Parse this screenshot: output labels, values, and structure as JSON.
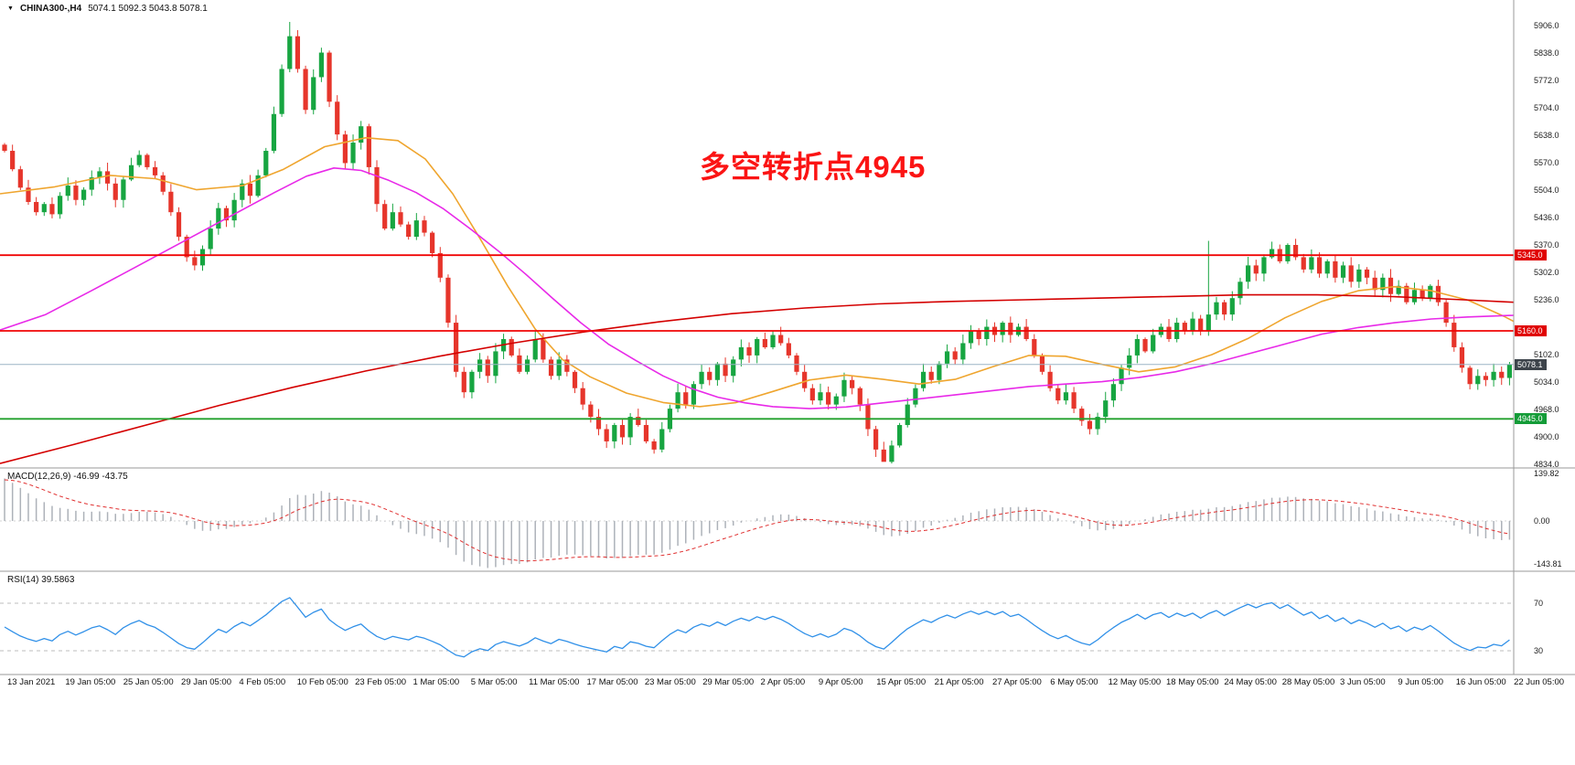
{
  "header": {
    "marker": "▼",
    "symbol": "CHINA300-,H4",
    "ohlc": "5074.1 5092.3 5043.8 5078.1"
  },
  "annotation": {
    "text": "多空转折点4945",
    "color": "#fb1414"
  },
  "panels": {
    "macd": {
      "label": "MACD(12,26,9) -46.99 -43.75",
      "axis": [
        "139.82",
        "0.00",
        "-143.81"
      ]
    },
    "rsi": {
      "label": "RSI(14) 39.5863",
      "axis": [
        "70",
        "30"
      ]
    }
  },
  "price_axis": {
    "labels": [
      "5906.0",
      "5838.0",
      "5772.0",
      "5704.0",
      "5638.0",
      "5570.0",
      "5504.0",
      "5436.0",
      "5370.0",
      "5302.0",
      "5236.0",
      "5102.0",
      "5034.0",
      "4968.0",
      "4900.0",
      "4834.0"
    ]
  },
  "markers": [
    {
      "text": "5345.0",
      "price": 5345.0,
      "bg": "#e00000"
    },
    {
      "text": "5160.0",
      "price": 5160.0,
      "bg": "#e00000"
    },
    {
      "text": "5078.1",
      "price": 5078.1,
      "bg": "#3d444b"
    },
    {
      "text": "4945.0",
      "price": 4945.0,
      "bg": "#149c38"
    }
  ],
  "date_axis": [
    "13 Jan 2021",
    "19 Jan 05:00",
    "25 Jan 05:00",
    "29 Jan 05:00",
    "4 Feb 05:00",
    "10 Feb 05:00",
    "23 Feb 05:00",
    "1 Mar 05:00",
    "5 Mar 05:00",
    "11 Mar 05:00",
    "17 Mar 05:00",
    "23 Mar 05:00",
    "29 Mar 05:00",
    "2 Apr 05:00",
    "9 Apr 05:00",
    "15 Apr 05:00",
    "21 Apr 05:00",
    "27 Apr 05:00",
    "6 May 05:00",
    "12 May 05:00",
    "18 May 05:00",
    "24 May 05:00",
    "28 May 05:00",
    "3 Jun 05:00",
    "9 Jun 05:00",
    "16 Jun 05:00",
    "22 Jun 05:00"
  ],
  "colors": {
    "up": "#17a541",
    "down": "#e6352b",
    "macd_hist": "#adb2b9",
    "macd_signal": "#e03030",
    "rsi_line": "#3090e8",
    "separator": "#9a9a9a",
    "level_red": "#f00505",
    "level_green": "#22a02c",
    "bid_line": "#9cb3c6"
  },
  "chart_data": {
    "type": "candlestick",
    "symbol": "CHINA300-",
    "timeframe": "H4",
    "title": "CHINA300-,H4 5074.1 5092.3 5043.8 5078.1",
    "ohlc_display": {
      "open": 5074.1,
      "high": 5092.3,
      "low": 5043.8,
      "close": 5078.1
    },
    "price_axis_range": [
      4834,
      5906
    ],
    "x_range": [
      "13 Jan 2021",
      "22 Jun 05:00"
    ],
    "closes": [
      5600,
      5555,
      5510,
      5475,
      5450,
      5470,
      5445,
      5490,
      5515,
      5480,
      5505,
      5535,
      5550,
      5520,
      5480,
      5530,
      5565,
      5590,
      5560,
      5540,
      5500,
      5450,
      5390,
      5340,
      5320,
      5360,
      5410,
      5460,
      5430,
      5480,
      5520,
      5490,
      5540,
      5600,
      5690,
      5800,
      5880,
      5800,
      5700,
      5780,
      5840,
      5720,
      5640,
      5570,
      5620,
      5660,
      5560,
      5470,
      5410,
      5450,
      5420,
      5390,
      5430,
      5400,
      5350,
      5290,
      5180,
      5060,
      5010,
      5060,
      5090,
      5050,
      5110,
      5140,
      5100,
      5060,
      5090,
      5140,
      5090,
      5050,
      5090,
      5060,
      5020,
      4980,
      4950,
      4920,
      4890,
      4930,
      4900,
      4950,
      4930,
      4890,
      4870,
      4920,
      4970,
      5010,
      4980,
      5030,
      5060,
      5040,
      5080,
      5050,
      5090,
      5120,
      5100,
      5140,
      5120,
      5150,
      5130,
      5100,
      5060,
      5020,
      4990,
      5010,
      4980,
      5000,
      5040,
      5020,
      4980,
      4920,
      4870,
      4840,
      4880,
      4930,
      4980,
      5020,
      5060,
      5040,
      5080,
      5110,
      5090,
      5130,
      5160,
      5140,
      5170,
      5150,
      5180,
      5150,
      5170,
      5140,
      5100,
      5060,
      5020,
      4990,
      5010,
      4970,
      4940,
      4920,
      4950,
      4990,
      5030,
      5070,
      5100,
      5140,
      5110,
      5150,
      5170,
      5140,
      5180,
      5160,
      5190,
      5160,
      5200,
      5230,
      5200,
      5240,
      5280,
      5320,
      5300,
      5340,
      5360,
      5330,
      5370,
      5340,
      5310,
      5340,
      5300,
      5330,
      5290,
      5320,
      5280,
      5310,
      5290,
      5260,
      5290,
      5250,
      5270,
      5230,
      5260,
      5240,
      5270,
      5230,
      5180,
      5120,
      5070,
      5030,
      5050,
      5040,
      5060,
      5045,
      5078.1
    ],
    "wick_overrides": [
      {
        "i": 36,
        "high": 5915
      },
      {
        "i": 82,
        "low": 4860
      },
      {
        "i": 111,
        "low": 4848
      },
      {
        "i": 152,
        "high": 5380
      }
    ],
    "levels": [
      {
        "price": 5345,
        "color": "#f00505",
        "width": 1.8
      },
      {
        "price": 5160,
        "color": "#f00505",
        "width": 1.8
      },
      {
        "price": 4945,
        "color": "#22a02c",
        "width": 1.8
      }
    ],
    "bid_line": {
      "price": 5078.1
    },
    "moving_averages": [
      {
        "name": "ma-fast-orange",
        "color": "#efa52e",
        "width": 1.6,
        "points": [
          [
            0,
            5495
          ],
          [
            60,
            5512
          ],
          [
            120,
            5540
          ],
          [
            170,
            5532
          ],
          [
            215,
            5505
          ],
          [
            265,
            5515
          ],
          [
            310,
            5555
          ],
          [
            355,
            5610
          ],
          [
            400,
            5632
          ],
          [
            435,
            5625
          ],
          [
            465,
            5580
          ],
          [
            495,
            5495
          ],
          [
            525,
            5385
          ],
          [
            555,
            5270
          ],
          [
            585,
            5165
          ],
          [
            615,
            5090
          ],
          [
            645,
            5048
          ],
          [
            685,
            5008
          ],
          [
            725,
            4985
          ],
          [
            765,
            4975
          ],
          [
            805,
            4985
          ],
          [
            845,
            5012
          ],
          [
            885,
            5040
          ],
          [
            925,
            5052
          ],
          [
            965,
            5042
          ],
          [
            1005,
            5030
          ],
          [
            1045,
            5042
          ],
          [
            1085,
            5072
          ],
          [
            1125,
            5100
          ],
          [
            1165,
            5098
          ],
          [
            1205,
            5078
          ],
          [
            1245,
            5060
          ],
          [
            1285,
            5072
          ],
          [
            1325,
            5102
          ],
          [
            1365,
            5142
          ],
          [
            1405,
            5192
          ],
          [
            1445,
            5232
          ],
          [
            1485,
            5258
          ],
          [
            1525,
            5268
          ],
          [
            1565,
            5258
          ],
          [
            1605,
            5235
          ],
          [
            1645,
            5195
          ],
          [
            1655,
            5183
          ]
        ]
      },
      {
        "name": "ma-mid-magenta",
        "color": "#e829e8",
        "width": 1.6,
        "points": [
          [
            0,
            5162
          ],
          [
            50,
            5200
          ],
          [
            100,
            5258
          ],
          [
            150,
            5318
          ],
          [
            200,
            5378
          ],
          [
            250,
            5438
          ],
          [
            300,
            5498
          ],
          [
            335,
            5538
          ],
          [
            365,
            5558
          ],
          [
            395,
            5552
          ],
          [
            425,
            5528
          ],
          [
            455,
            5498
          ],
          [
            485,
            5458
          ],
          [
            515,
            5408
          ],
          [
            545,
            5355
          ],
          [
            575,
            5298
          ],
          [
            605,
            5238
          ],
          [
            635,
            5180
          ],
          [
            665,
            5128
          ],
          [
            695,
            5088
          ],
          [
            725,
            5050
          ],
          [
            755,
            5020
          ],
          [
            785,
            4998
          ],
          [
            815,
            4984
          ],
          [
            845,
            4975
          ],
          [
            885,
            4970
          ],
          [
            925,
            4974
          ],
          [
            965,
            4984
          ],
          [
            1005,
            4994
          ],
          [
            1045,
            5004
          ],
          [
            1085,
            5014
          ],
          [
            1125,
            5024
          ],
          [
            1165,
            5030
          ],
          [
            1205,
            5036
          ],
          [
            1245,
            5046
          ],
          [
            1285,
            5060
          ],
          [
            1325,
            5080
          ],
          [
            1365,
            5104
          ],
          [
            1405,
            5128
          ],
          [
            1445,
            5152
          ],
          [
            1485,
            5168
          ],
          [
            1525,
            5180
          ],
          [
            1565,
            5189
          ],
          [
            1605,
            5194
          ],
          [
            1655,
            5198
          ]
        ]
      },
      {
        "name": "ma-slow-red",
        "color": "#d40000",
        "width": 1.6,
        "points": [
          [
            0,
            4836
          ],
          [
            80,
            4882
          ],
          [
            160,
            4930
          ],
          [
            240,
            4978
          ],
          [
            320,
            5022
          ],
          [
            400,
            5062
          ],
          [
            480,
            5098
          ],
          [
            560,
            5130
          ],
          [
            640,
            5158
          ],
          [
            720,
            5182
          ],
          [
            800,
            5202
          ],
          [
            880,
            5216
          ],
          [
            960,
            5226
          ],
          [
            1040,
            5232
          ],
          [
            1120,
            5236
          ],
          [
            1200,
            5240
          ],
          [
            1280,
            5244
          ],
          [
            1360,
            5248
          ],
          [
            1440,
            5248
          ],
          [
            1520,
            5244
          ],
          [
            1600,
            5236
          ],
          [
            1655,
            5230
          ]
        ]
      }
    ],
    "macd": {
      "fast": 12,
      "slow": 26,
      "signal": 9,
      "value": -46.99,
      "signal_value": -43.75,
      "axis_range": [
        -143.81,
        139.82
      ]
    },
    "rsi": {
      "period": 14,
      "value": 39.5863,
      "levels": [
        70,
        30
      ]
    }
  }
}
